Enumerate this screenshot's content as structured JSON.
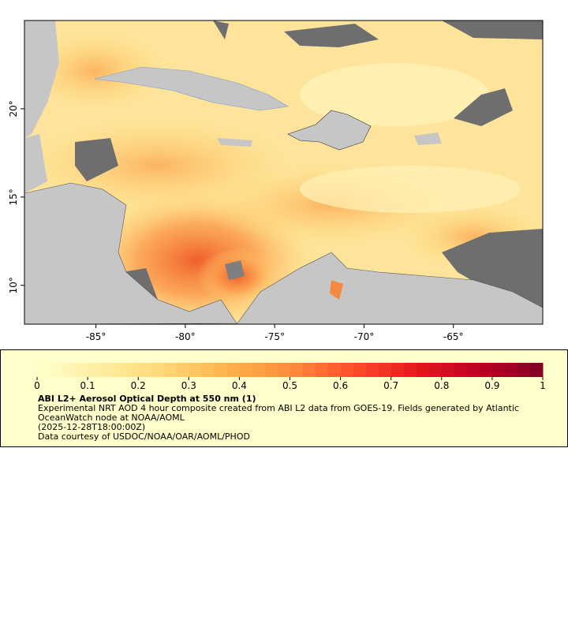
{
  "map": {
    "xlim": [
      -89,
      -60
    ],
    "ylim": [
      7.8,
      25
    ],
    "x_ticks": [
      {
        "value": -85,
        "label": "-85°"
      },
      {
        "value": -80,
        "label": "-80°"
      },
      {
        "value": -75,
        "label": "-75°"
      },
      {
        "value": -70,
        "label": "-70°"
      },
      {
        "value": -65,
        "label": "-65°"
      }
    ],
    "y_ticks": [
      {
        "value": 10,
        "label": "10°"
      },
      {
        "value": 15,
        "label": "15°"
      },
      {
        "value": 20,
        "label": "20°"
      }
    ]
  },
  "colorbar": {
    "range": [
      0,
      1
    ],
    "ticks": [
      0,
      0.1,
      0.2,
      0.3,
      0.4,
      0.5,
      0.6,
      0.7,
      0.8,
      0.9,
      1
    ],
    "colormap": [
      "#ffffcc",
      "#ffeda0",
      "#fed976",
      "#feb24c",
      "#fd8d3c",
      "#fc4e2a",
      "#e31a1c",
      "#bd0026",
      "#800026"
    ]
  },
  "legend": {
    "title": "ABI L2+ Aerosol Optical Depth at 550 nm (1)",
    "description": "Experimental NRT AOD 4 hour composite created from ABI L2 data from GOES-19. Fields generated by Atlantic OceanWatch node at NOAA/AOML",
    "time": "(2025-12-28T18:00:00Z)",
    "credit": "Data courtesy of USDOC/NOAA/OAR/AOML/PHOD"
  }
}
